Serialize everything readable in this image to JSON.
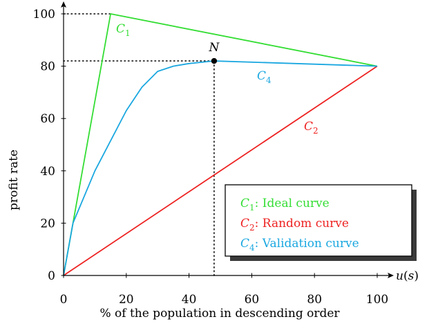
{
  "chart_data": {
    "type": "line",
    "xlabel": "% of the population in descending order",
    "ylabel": "profit rate",
    "x_axis_end_label": "u(s)",
    "xlim": [
      0,
      100
    ],
    "ylim": [
      0,
      100
    ],
    "xticks": [
      0,
      20,
      40,
      60,
      80,
      100
    ],
    "yticks": [
      0,
      20,
      40,
      60,
      80,
      100
    ],
    "grid": false,
    "series": [
      {
        "name": "C1",
        "legend": "C1: Ideal curve",
        "color": "#33dd33",
        "points": [
          [
            0,
            0
          ],
          [
            15,
            100
          ],
          [
            100,
            80
          ]
        ]
      },
      {
        "name": "C2",
        "legend": "C2: Random curve",
        "color": "#ee2222",
        "points": [
          [
            0,
            0
          ],
          [
            100,
            80
          ]
        ]
      },
      {
        "name": "C4",
        "legend": "C4: Validation curve",
        "color": "#1aa7e0",
        "points": [
          [
            0,
            0
          ],
          [
            3,
            20
          ],
          [
            10,
            40
          ],
          [
            20,
            63
          ],
          [
            25,
            72
          ],
          [
            30,
            78
          ],
          [
            35,
            80
          ],
          [
            40,
            81
          ],
          [
            48,
            82
          ],
          [
            100,
            80
          ]
        ]
      }
    ],
    "annotations": [
      {
        "label": "N",
        "x": 48,
        "y": 82,
        "marker": "point"
      }
    ],
    "reference_lines": [
      {
        "from": [
          0,
          100
        ],
        "to": [
          15,
          100
        ],
        "style": "dotted"
      },
      {
        "from": [
          0,
          82
        ],
        "to": [
          48,
          82
        ],
        "style": "dotted"
      },
      {
        "from": [
          48,
          0
        ],
        "to": [
          48,
          82
        ],
        "style": "dotted"
      }
    ],
    "legend_position": "bottom-right"
  }
}
